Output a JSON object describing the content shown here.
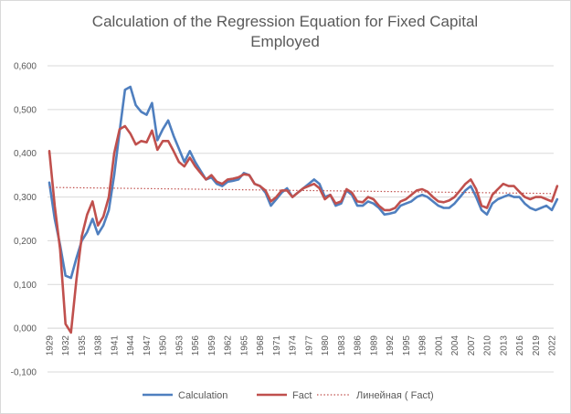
{
  "chart_data": {
    "type": "line",
    "title": [
      "Calculation of the Regression Equation for Fixed Capital",
      "Employed"
    ],
    "xlabel": "",
    "ylabel": "",
    "ylim": [
      -0.1,
      0.6
    ],
    "ytick_labels": [
      "-0,100",
      "0,000",
      "0,100",
      "0,200",
      "0,300",
      "0,400",
      "0,500",
      "0,600"
    ],
    "ytick_values": [
      -0.1,
      0.0,
      0.1,
      0.2,
      0.3,
      0.4,
      0.5,
      0.6
    ],
    "x_start": 1929,
    "x_end": 2022,
    "xtick_labels": [
      "1929",
      "1932",
      "1935",
      "1938",
      "1941",
      "1944",
      "1947",
      "1950",
      "1953",
      "1956",
      "1959",
      "1962",
      "1965",
      "1968",
      "1971",
      "1974",
      "1977",
      "1980",
      "1983",
      "1986",
      "1989",
      "1992",
      "1995",
      "1998",
      "2001",
      "2004",
      "2007",
      "2010",
      "2013",
      "2016",
      "2019",
      "2022"
    ],
    "grid": "horizontal",
    "legend_position": "bottom",
    "series": [
      {
        "name": "Calculation",
        "color": "#4f7fbf",
        "style": "solid",
        "values": [
          0.333,
          0.25,
          0.19,
          0.12,
          0.115,
          0.16,
          0.2,
          0.22,
          0.25,
          0.215,
          0.235,
          0.27,
          0.35,
          0.45,
          0.545,
          0.552,
          0.51,
          0.495,
          0.488,
          0.515,
          0.43,
          0.455,
          0.475,
          0.44,
          0.41,
          0.38,
          0.405,
          0.38,
          0.36,
          0.34,
          0.345,
          0.33,
          0.325,
          0.335,
          0.337,
          0.34,
          0.355,
          0.35,
          0.33,
          0.325,
          0.31,
          0.28,
          0.295,
          0.31,
          0.32,
          0.3,
          0.31,
          0.32,
          0.33,
          0.34,
          0.33,
          0.3,
          0.305,
          0.28,
          0.285,
          0.315,
          0.305,
          0.28,
          0.28,
          0.29,
          0.285,
          0.275,
          0.26,
          0.262,
          0.265,
          0.28,
          0.285,
          0.29,
          0.3,
          0.305,
          0.3,
          0.29,
          0.28,
          0.275,
          0.275,
          0.285,
          0.3,
          0.315,
          0.325,
          0.3,
          0.27,
          0.26,
          0.285,
          0.295,
          0.3,
          0.305,
          0.3,
          0.3,
          0.285,
          0.275,
          0.27,
          0.275,
          0.28,
          0.27,
          0.295
        ]
      },
      {
        "name": "Fact",
        "color": "#c0504d",
        "style": "solid",
        "values": [
          0.405,
          0.28,
          0.18,
          0.01,
          -0.01,
          0.11,
          0.21,
          0.26,
          0.29,
          0.235,
          0.255,
          0.3,
          0.4,
          0.455,
          0.462,
          0.445,
          0.42,
          0.428,
          0.425,
          0.452,
          0.408,
          0.428,
          0.428,
          0.405,
          0.38,
          0.37,
          0.39,
          0.37,
          0.355,
          0.34,
          0.35,
          0.335,
          0.33,
          0.34,
          0.342,
          0.345,
          0.352,
          0.35,
          0.33,
          0.325,
          0.315,
          0.29,
          0.3,
          0.315,
          0.315,
          0.3,
          0.31,
          0.32,
          0.325,
          0.33,
          0.32,
          0.295,
          0.305,
          0.285,
          0.29,
          0.318,
          0.31,
          0.29,
          0.288,
          0.3,
          0.295,
          0.28,
          0.27,
          0.27,
          0.275,
          0.29,
          0.295,
          0.305,
          0.315,
          0.318,
          0.312,
          0.3,
          0.29,
          0.288,
          0.292,
          0.3,
          0.315,
          0.33,
          0.34,
          0.318,
          0.28,
          0.275,
          0.305,
          0.318,
          0.33,
          0.325,
          0.325,
          0.312,
          0.3,
          0.295,
          0.3,
          0.3,
          0.295,
          0.29,
          0.325
        ]
      },
      {
        "name": "Линейная (  Fact)",
        "color": "#c0504d",
        "style": "dotted",
        "trendline_start": 0.322,
        "trendline_end": 0.308
      }
    ]
  }
}
